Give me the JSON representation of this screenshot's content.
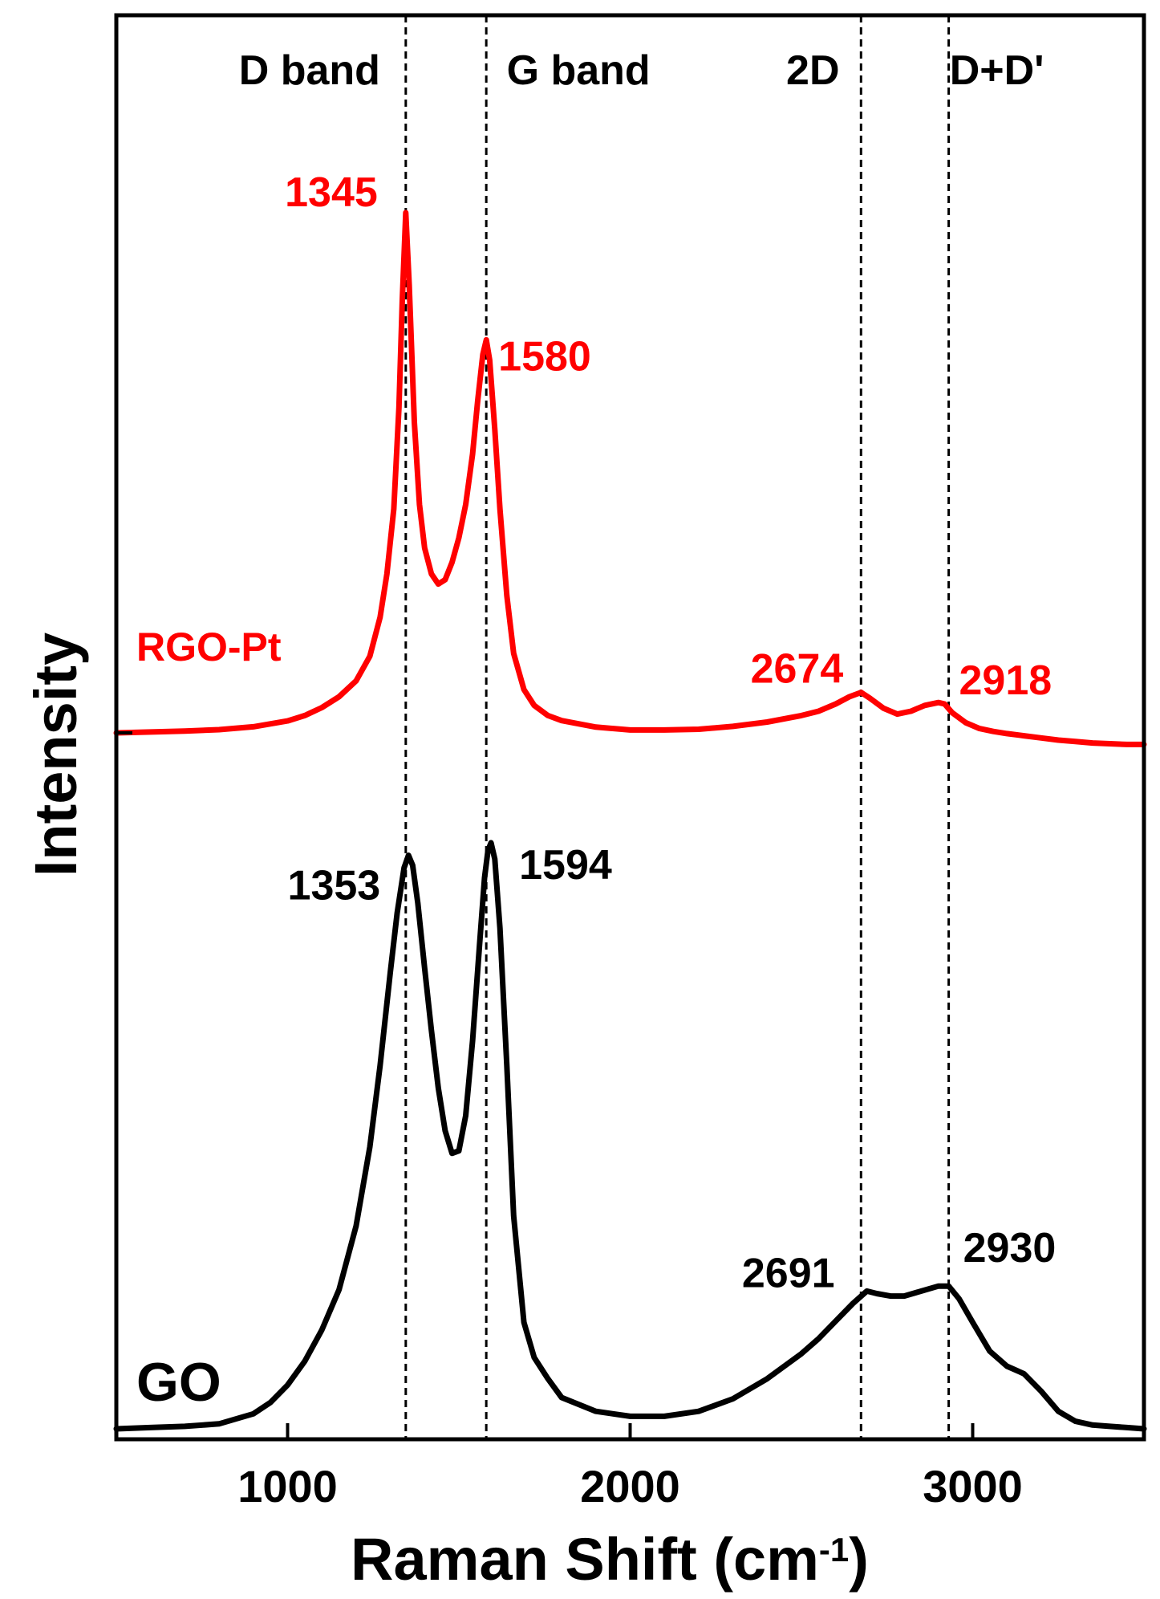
{
  "chart_data": {
    "type": "line",
    "xlabel": "Raman Shift (cm",
    "xlabel_sup": "-1",
    "xlabel_close": ")",
    "ylabel": "Intensity",
    "xlim": [
      500,
      3500
    ],
    "xticks": [
      {
        "value": 1000,
        "label": "1000"
      },
      {
        "value": 2000,
        "label": "2000"
      },
      {
        "value": 3000,
        "label": "3000"
      }
    ],
    "yticks_labeled": false,
    "grid": false,
    "legend": "none",
    "reference_lines": [
      {
        "x": 1345,
        "label": "D band"
      },
      {
        "x": 1580,
        "label": "G band"
      },
      {
        "x": 2674,
        "label": "2D"
      },
      {
        "x": 2930,
        "label": "D+D'"
      }
    ],
    "series": [
      {
        "name": "RGO-Pt",
        "color": "#ff0000",
        "x": [
          500,
          600,
          700,
          800,
          900,
          1000,
          1050,
          1100,
          1150,
          1200,
          1240,
          1270,
          1290,
          1310,
          1325,
          1335,
          1345,
          1355,
          1370,
          1385,
          1400,
          1420,
          1440,
          1460,
          1480,
          1500,
          1520,
          1540,
          1555,
          1570,
          1580,
          1590,
          1605,
          1620,
          1640,
          1660,
          1690,
          1720,
          1760,
          1800,
          1900,
          2000,
          2100,
          2200,
          2300,
          2400,
          2500,
          2550,
          2600,
          2640,
          2674,
          2700,
          2740,
          2780,
          2820,
          2860,
          2900,
          2918,
          2940,
          2980,
          3020,
          3060,
          3100,
          3150,
          3200,
          3250,
          3300,
          3350,
          3400,
          3450,
          3500
        ],
        "y": [
          0.0,
          0.6,
          1.2,
          2.2,
          4.2,
          8.3,
          12.0,
          17.5,
          25.0,
          36.0,
          53.0,
          80.0,
          110.0,
          155.0,
          225.0,
          300.0,
          360.0,
          310.0,
          215.0,
          158.0,
          128.0,
          110.0,
          103.0,
          106.0,
          118.0,
          135.0,
          158.0,
          193.0,
          230.0,
          262.0,
          272.0,
          258.0,
          210.0,
          155.0,
          95.0,
          55.0,
          30.0,
          19.0,
          12.0,
          8.5,
          4.0,
          2.0,
          2.0,
          2.5,
          4.5,
          7.5,
          12.0,
          15.0,
          20.0,
          25.0,
          28.0,
          24.0,
          17.0,
          13.0,
          15.0,
          19.0,
          21.0,
          20.0,
          14.0,
          7.0,
          3.0,
          1.0,
          -0.5,
          -2.0,
          -3.5,
          -5.0,
          -6.0,
          -7.0,
          -7.5,
          -8.0,
          -8.0
        ],
        "peaks": [
          {
            "x": 1345,
            "label": "1345"
          },
          {
            "x": 1580,
            "label": "1580"
          },
          {
            "x": 2674,
            "label": "2674"
          },
          {
            "x": 2918,
            "label": "2918"
          }
        ],
        "annotation": "RGO-Pt"
      },
      {
        "name": "GO",
        "color": "#000000",
        "x": [
          500,
          600,
          700,
          800,
          900,
          950,
          1000,
          1050,
          1100,
          1150,
          1200,
          1240,
          1270,
          1300,
          1320,
          1340,
          1353,
          1365,
          1380,
          1400,
          1420,
          1440,
          1460,
          1480,
          1500,
          1520,
          1540,
          1560,
          1575,
          1585,
          1594,
          1605,
          1620,
          1640,
          1660,
          1690,
          1720,
          1760,
          1800,
          1900,
          2000,
          2100,
          2200,
          2300,
          2400,
          2500,
          2550,
          2600,
          2650,
          2691,
          2720,
          2760,
          2800,
          2850,
          2900,
          2930,
          2960,
          3000,
          3050,
          3100,
          3150,
          3200,
          3250,
          3300,
          3350,
          3400,
          3450,
          3500
        ],
        "y": [
          0.0,
          1.0,
          2.0,
          4.0,
          12.0,
          21.0,
          35.0,
          54.0,
          79.0,
          111.0,
          162.0,
          225.0,
          290.0,
          365.0,
          412.0,
          448.0,
          458.0,
          450.0,
          420.0,
          368.0,
          318.0,
          272.0,
          238.0,
          220.0,
          222.0,
          250.0,
          310.0,
          385.0,
          440.0,
          462.0,
          468.0,
          455.0,
          400.0,
          290.0,
          170.0,
          85.0,
          57.0,
          40.0,
          25.0,
          14.0,
          10.0,
          10.0,
          14.0,
          24.0,
          40.0,
          60.0,
          72.0,
          86.0,
          100.0,
          110.0,
          108.0,
          106.0,
          106.0,
          110.0,
          114.0,
          114.0,
          104.0,
          85.0,
          62.0,
          50.0,
          44.0,
          30.0,
          14.0,
          6.0,
          3.0,
          2.0,
          1.0,
          0.0
        ],
        "peaks": [
          {
            "x": 1353,
            "label": "1353"
          },
          {
            "x": 1594,
            "label": "1594"
          },
          {
            "x": 2691,
            "label": "2691"
          },
          {
            "x": 2930,
            "label": "2930"
          }
        ],
        "annotation": "GO"
      }
    ]
  }
}
